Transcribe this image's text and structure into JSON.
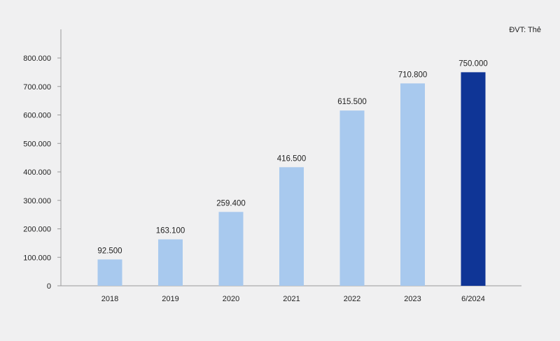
{
  "chart_data": {
    "type": "bar",
    "unit_note": "ĐVT: Thẻ",
    "categories": [
      "2018",
      "2019",
      "2020",
      "2021",
      "2022",
      "2023",
      "6/2024"
    ],
    "values": [
      92500,
      163100,
      259400,
      416500,
      615500,
      710800,
      750000
    ],
    "value_labels": [
      "92.500",
      "163.100",
      "259.400",
      "416.500",
      "615.500",
      "710.800",
      "750.000"
    ],
    "yticks": [
      0,
      100000,
      200000,
      300000,
      400000,
      500000,
      600000,
      700000,
      800000
    ],
    "ytick_labels": [
      "0",
      "100.000",
      "200.000",
      "300.000",
      "400.000",
      "500.000",
      "600.000",
      "700.000",
      "800.000"
    ],
    "ylim": [
      0,
      900000
    ],
    "grid": false,
    "colors": {
      "bar": "#a8c9ee",
      "highlight_bar": "#0f3596",
      "axis": "#9a9a9a",
      "text": "#222222"
    },
    "highlight_index": 6
  }
}
